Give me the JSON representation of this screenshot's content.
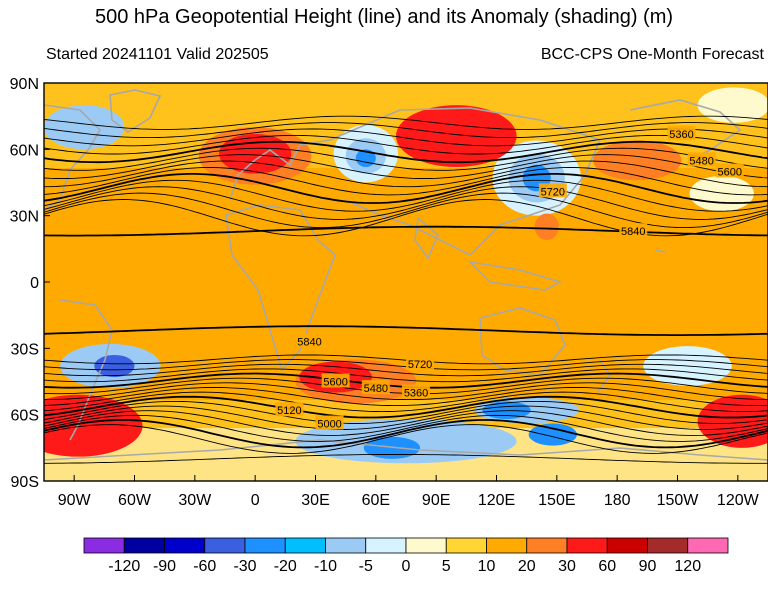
{
  "title": "500 hPa Geopotential Height (line) and its Anomaly (shading) (m)",
  "subtitle_left": "Started 20241101  Valid 202505",
  "subtitle_right": "BCC-CPS One-Month Forecast",
  "chart_data": {
    "type": "heatmap",
    "lat_ticks": [
      "90N",
      "60N",
      "30N",
      "0",
      "30S",
      "60S",
      "90S"
    ],
    "lat_values": [
      90,
      60,
      30,
      0,
      -30,
      -60,
      -90
    ],
    "lon_ticks": [
      "90W",
      "60W",
      "30W",
      "0",
      "30E",
      "60E",
      "90E",
      "120E",
      "150E",
      "180",
      "150W",
      "120W"
    ],
    "lon_values": [
      -90,
      -60,
      -30,
      0,
      30,
      60,
      90,
      120,
      150,
      180,
      210,
      240
    ],
    "lon_range": [
      -105,
      255
    ],
    "lat_range": [
      -90,
      90
    ],
    "contour_labels": [
      {
        "text": "5360",
        "lon": 212,
        "lat": 67
      },
      {
        "text": "5480",
        "lon": 222,
        "lat": 55
      },
      {
        "text": "5600",
        "lon": 236,
        "lat": 50
      },
      {
        "text": "5720",
        "lon": 148,
        "lat": 41
      },
      {
        "text": "5840",
        "lon": 188,
        "lat": 23
      },
      {
        "text": "5840",
        "lon": 27,
        "lat": -27
      },
      {
        "text": "5720",
        "lon": 82,
        "lat": -37
      },
      {
        "text": "5600",
        "lon": 40,
        "lat": -45
      },
      {
        "text": "5480",
        "lon": 60,
        "lat": -48
      },
      {
        "text": "5360",
        "lon": 80,
        "lat": -50
      },
      {
        "text": "5120",
        "lon": 17,
        "lat": -58
      },
      {
        "text": "5000",
        "lon": 37,
        "lat": -64
      }
    ],
    "colorbar": {
      "labels": [
        "-120",
        "-90",
        "-60",
        "-30",
        "-20",
        "-10",
        "-5",
        "0",
        "5",
        "10",
        "20",
        "30",
        "60",
        "90",
        "120"
      ],
      "colors": [
        "#8B2BE2",
        "#0000A0",
        "#0000CD",
        "#3A5FE0",
        "#1E90FF",
        "#00BFFF",
        "#9BCBF5",
        "#D6F3FF",
        "#FFFACD",
        "#FFD633",
        "#FFAA00",
        "#FF7F24",
        "#FF1A1A",
        "#CD0000",
        "#A52A2A",
        "#FF69B4"
      ]
    },
    "anomaly_blobs": [
      {
        "lon": 75,
        "lat": -72,
        "rx": 55,
        "ry": 10,
        "color": "#9BCBF5"
      },
      {
        "lon": 68,
        "lat": -75,
        "rx": 14,
        "ry": 5,
        "color": "#1E90FF"
      },
      {
        "lon": 135,
        "lat": -58,
        "rx": 26,
        "ry": 6,
        "color": "#9BCBF5"
      },
      {
        "lon": 125,
        "lat": -58,
        "rx": 12,
        "ry": 4,
        "color": "#1E90FF"
      },
      {
        "lon": 148,
        "lat": -69,
        "rx": 12,
        "ry": 5,
        "color": "#1E90FF"
      },
      {
        "lon": -72,
        "lat": -38,
        "rx": 25,
        "ry": 10,
        "color": "#9BCBF5"
      },
      {
        "lon": -70,
        "lat": -38,
        "rx": 10,
        "ry": 5,
        "color": "#3A5FE0"
      },
      {
        "lon": 215,
        "lat": -38,
        "rx": 22,
        "ry": 9,
        "color": "#D6F3FF"
      },
      {
        "lon": 55,
        "lat": 58,
        "rx": 16,
        "ry": 13,
        "color": "#D6F3FF"
      },
      {
        "lon": 55,
        "lat": 57,
        "rx": 10,
        "ry": 8,
        "color": "#9BCBF5"
      },
      {
        "lon": 55,
        "lat": 56,
        "rx": 5,
        "ry": 4,
        "color": "#1E90FF"
      },
      {
        "lon": 140,
        "lat": 47,
        "rx": 22,
        "ry": 17,
        "color": "#D6F3FF"
      },
      {
        "lon": 140,
        "lat": 47,
        "rx": 14,
        "ry": 11,
        "color": "#9BCBF5"
      },
      {
        "lon": 140,
        "lat": 47,
        "rx": 7,
        "ry": 6,
        "color": "#1E90FF"
      },
      {
        "lon": -85,
        "lat": 70,
        "rx": 20,
        "ry": 10,
        "color": "#9BCBF5"
      },
      {
        "lon": 232,
        "lat": 40,
        "rx": 16,
        "ry": 8,
        "color": "#FFFACD"
      },
      {
        "lon": 238,
        "lat": 80,
        "rx": 18,
        "ry": 8,
        "color": "#FFFACD"
      },
      {
        "lon": 0,
        "lat": 57,
        "rx": 28,
        "ry": 13,
        "color": "#FF7F24"
      },
      {
        "lon": 0,
        "lat": 58,
        "rx": 18,
        "ry": 9,
        "color": "#FF1A1A"
      },
      {
        "lon": 100,
        "lat": 66,
        "rx": 30,
        "ry": 14,
        "color": "#FF1A1A"
      },
      {
        "lon": 50,
        "lat": -45,
        "rx": 30,
        "ry": 10,
        "color": "#FF7F24"
      },
      {
        "lon": 40,
        "lat": -43,
        "rx": 18,
        "ry": 7,
        "color": "#FF1A1A"
      },
      {
        "lon": -88,
        "lat": -65,
        "rx": 32,
        "ry": 14,
        "color": "#FF1A1A"
      },
      {
        "lon": 242,
        "lat": -63,
        "rx": 22,
        "ry": 12,
        "color": "#FF1A1A"
      },
      {
        "lon": 190,
        "lat": 55,
        "rx": 22,
        "ry": 9,
        "color": "#FF7F24"
      },
      {
        "lon": 145,
        "lat": 25,
        "rx": 6,
        "ry": 6,
        "color": "#FF7F24"
      }
    ]
  }
}
